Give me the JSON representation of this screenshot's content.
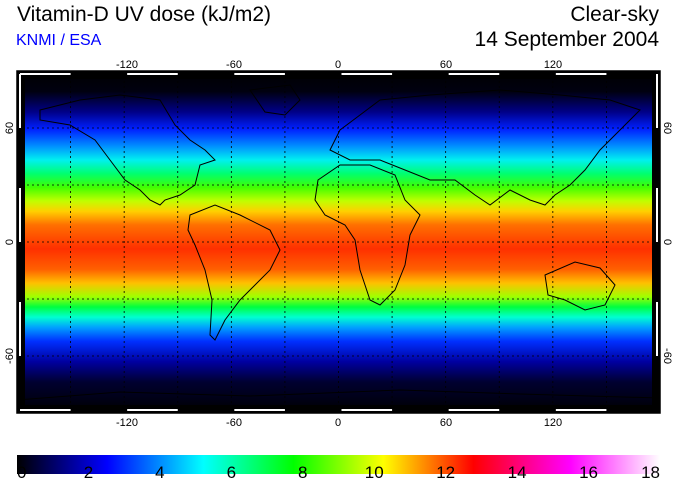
{
  "header": {
    "title": "Vitamin-D UV dose (kJ/m2)",
    "credit": "KNMI / ESA",
    "condition": "Clear-sky",
    "date": "14 September 2004"
  },
  "map": {
    "lon_labels": [
      "-120",
      "-60",
      "0",
      "60",
      "120"
    ],
    "lat_labels": [
      "60",
      "0",
      "-60"
    ]
  },
  "colorbar": {
    "ticks": [
      "0",
      "2",
      "4",
      "6",
      "8",
      "10",
      "12",
      "14",
      "16",
      "18"
    ],
    "colors": [
      "#000000",
      "#0000ff",
      "#00ffff",
      "#00ff00",
      "#ffff00",
      "#ff0000",
      "#ff00ff",
      "#ffffff"
    ]
  }
}
